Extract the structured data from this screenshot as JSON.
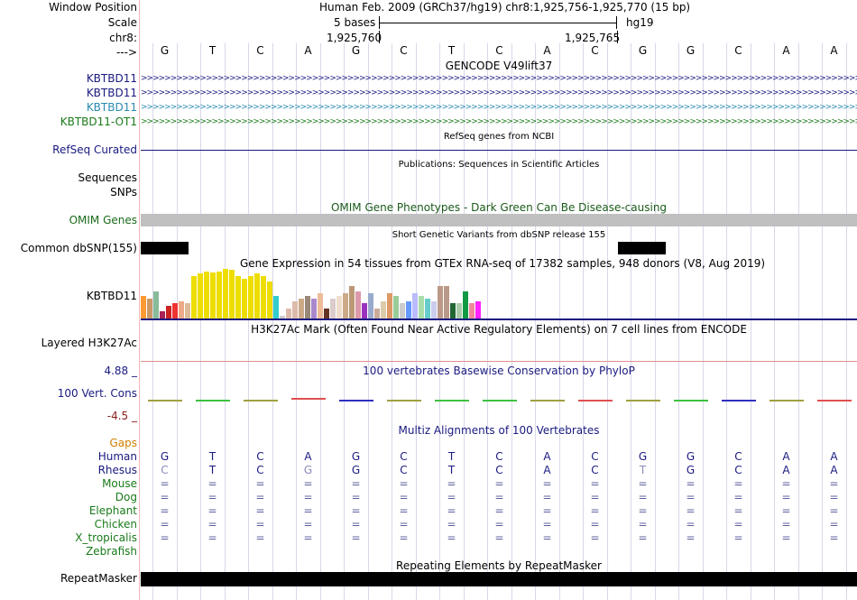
{
  "header": {
    "window_position_label": "Window Position",
    "scale_label": "Scale",
    "chr_label": "chr8:",
    "arrow_label": "--->",
    "assembly_text": "Human Feb. 2009 (GRCh37/hg19)   chr8:1,925,756-1,925,770 (15 bp)",
    "scale_text": "5 bases",
    "db_text": "hg19",
    "coord_left": "1,925,760",
    "coord_right": "1,925,765"
  },
  "sequence": [
    "G",
    "T",
    "C",
    "A",
    "G",
    "C",
    "T",
    "C",
    "A",
    "C",
    "G",
    "G",
    "C",
    "A",
    "A"
  ],
  "gencode": {
    "title": "GENCODE V49lift37",
    "tracks": [
      {
        "label": "KBTBD11",
        "color": "#1a1a80"
      },
      {
        "label": "KBTBD11",
        "color": "#1a1a80"
      },
      {
        "label": "KBTBD11",
        "color": "#2a8ab0"
      },
      {
        "label": "KBTBD11-OT1",
        "color": "#1a7a1a"
      }
    ]
  },
  "refseq": {
    "title": "RefSeq genes from NCBI",
    "label": "RefSeq Curated"
  },
  "publications": {
    "title": "Publications: Sequences in Scientific Articles",
    "label1": "Sequences",
    "label2": "SNPs"
  },
  "omim": {
    "title": "OMIM Gene Phenotypes - Dark Green Can Be Disease-causing",
    "label": "OMIM Genes"
  },
  "dbsnp": {
    "title": "Short Genetic Variants from dbSNP release 155",
    "label": "Common dbSNP(155)"
  },
  "gtex": {
    "title": "Gene Expression in 54 tissues from GTEx RNA-seq of 17382 samples, 948 donors (V8, Aug 2019)",
    "label": "KBTBD11",
    "levels": [
      0.45,
      0.4,
      0.55,
      0.15,
      0.25,
      0.3,
      0.35,
      0.3,
      0.85,
      0.9,
      0.95,
      0.92,
      0.95,
      1.0,
      0.98,
      0.85,
      0.8,
      0.85,
      0.9,
      0.85,
      0.75,
      0.45,
      0.05,
      0.2,
      0.35,
      0.4,
      0.45,
      0.4,
      0.5,
      0.2,
      0.4,
      0.45,
      0.5,
      0.65,
      0.55,
      0.3,
      0.5,
      0.2,
      0.35,
      0.5,
      0.45,
      0.3,
      0.35,
      0.5,
      0.45,
      0.4,
      0.35,
      0.65,
      0.65,
      0.3,
      0.3,
      0.55,
      0.3,
      0.35
    ],
    "colors": [
      "#ff9933",
      "#cc9966",
      "#88bb99",
      "#aa2255",
      "#cc2222",
      "#ee3333",
      "#eeaa88",
      "#ddbb99",
      "#eedd00",
      "#eedd00",
      "#eedd00",
      "#eedd00",
      "#eedd00",
      "#eedd00",
      "#eedd00",
      "#eedd00",
      "#eedd00",
      "#eedd00",
      "#eedd00",
      "#eedd00",
      "#eedd00",
      "#33cccc",
      "#cccccc",
      "#ddbbaa",
      "#ddbbaa",
      "#ccaa88",
      "#998877",
      "#aa88cc",
      "#eebb99",
      "#663322",
      "#ddcccc",
      "#eeddcc",
      "#ccaa88",
      "#bb9977",
      "#dd99aa",
      "#9933bb",
      "#99aacc",
      "#ccaa99",
      "#ddccaa",
      "#dd9966",
      "#99cc99",
      "#cccccc",
      "#6699ff",
      "#bbbbff",
      "#aaddaa",
      "#66cccc",
      "#ccccee",
      "#bb9988",
      "#bb9988",
      "#226633",
      "#aaccaa",
      "#119944",
      "#ee8899",
      "#ff22ff"
    ]
  },
  "h3k27ac": {
    "title": "H3K27Ac Mark (Often Found Near Active Regulatory Elements) on 7 cell lines from ENCODE",
    "label": "Layered H3K27Ac"
  },
  "phylop": {
    "title": "100 vertebrates Basewise Conservation by PhyloP",
    "label": "100 Vert. Cons",
    "max": "4.88 _",
    "min": "-4.5 _"
  },
  "multiz": {
    "title": "Multiz Alignments of 100 Vertebrates",
    "gaps_label": "Gaps",
    "species": [
      {
        "name": "Human",
        "row": [
          "G",
          "T",
          "C",
          "A",
          "G",
          "C",
          "T",
          "C",
          "A",
          "C",
          "G",
          "G",
          "C",
          "A",
          "A"
        ]
      },
      {
        "name": "Rhesus",
        "row": [
          "C",
          "T",
          "C",
          "G",
          "G",
          "C",
          "T",
          "C",
          "A",
          "C",
          "T",
          "G",
          "C",
          "A",
          "A"
        ]
      },
      {
        "name": "Mouse",
        "row": [
          "=",
          "=",
          "=",
          "=",
          "=",
          "=",
          "=",
          "=",
          "=",
          "=",
          "=",
          "=",
          "=",
          "=",
          "="
        ]
      },
      {
        "name": "Dog",
        "row": [
          "=",
          "=",
          "=",
          "=",
          "=",
          "=",
          "=",
          "=",
          "=",
          "=",
          "=",
          "=",
          "=",
          "=",
          "="
        ]
      },
      {
        "name": "Elephant",
        "row": [
          "=",
          "=",
          "=",
          "=",
          "=",
          "=",
          "=",
          "=",
          "=",
          "=",
          "=",
          "=",
          "=",
          "=",
          "="
        ]
      },
      {
        "name": "Chicken",
        "row": [
          "=",
          "=",
          "=",
          "=",
          "=",
          "=",
          "=",
          "=",
          "=",
          "=",
          "=",
          "=",
          "=",
          "=",
          "="
        ]
      },
      {
        "name": "X_tropicalis",
        "row": [
          "=",
          "=",
          "=",
          "=",
          "=",
          "=",
          "=",
          "=",
          "=",
          "=",
          "=",
          "=",
          "=",
          "=",
          "="
        ]
      },
      {
        "name": "Zebrafish",
        "row": []
      }
    ]
  },
  "repeatmasker": {
    "title": "Repeating Elements by RepeatMasker",
    "label": "RepeatMasker"
  }
}
